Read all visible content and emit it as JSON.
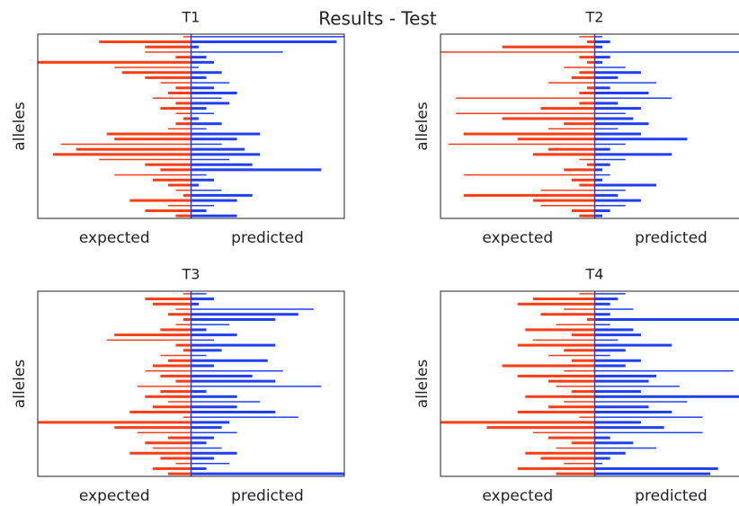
{
  "title": "Results - Test",
  "chart_data": [
    {
      "type": "butterfly",
      "title": "T1",
      "ylabel": "alleles",
      "xlim": [
        -1,
        1
      ],
      "series": [
        {
          "name": "expected",
          "color": "#ff3c14",
          "values": [
            -0.05,
            -0.6,
            -0.3,
            -0.3,
            -0.1,
            -1.0,
            -0.5,
            -0.45,
            -0.3,
            -0.2,
            -0.1,
            -0.15,
            -0.25,
            -0.1,
            -0.2,
            -0.1,
            -0.05,
            -0.1,
            -0.15,
            -0.55,
            -0.5,
            -0.85,
            -0.75,
            -0.9,
            -0.6,
            -0.3,
            -0.2,
            -0.5,
            -0.25,
            -0.15,
            -0.1,
            -0.05,
            -0.4,
            -0.15,
            -0.3,
            -0.1
          ]
        },
        {
          "name": "predicted",
          "color": "#1f3ff0",
          "values": [
            1.0,
            0.95,
            0.05,
            0.6,
            0.1,
            0.15,
            0.05,
            0.2,
            0.1,
            0.25,
            0.15,
            0.3,
            0.2,
            0.25,
            0.1,
            0.15,
            0.05,
            0.2,
            0.1,
            0.45,
            0.3,
            0.2,
            0.35,
            0.45,
            0.25,
            0.4,
            0.85,
            0.1,
            0.15,
            0.05,
            0.2,
            0.4,
            0.3,
            0.15,
            0.1,
            0.3
          ]
        }
      ]
    },
    {
      "type": "butterfly",
      "title": "T2",
      "ylabel": "alleles",
      "xlim": [
        -1,
        1
      ],
      "series": [
        {
          "name": "expected",
          "color": "#ff3c14",
          "values": [
            -0.1,
            -0.05,
            -0.6,
            -1.0,
            -0.1,
            -0.05,
            -0.2,
            -0.1,
            -0.15,
            -0.3,
            -0.05,
            -0.1,
            -0.9,
            -0.1,
            -0.35,
            -0.9,
            -0.6,
            -0.2,
            -0.3,
            -0.85,
            -0.5,
            -0.95,
            -0.3,
            -0.4,
            -0.1,
            -0.05,
            -0.2,
            -0.85,
            -0.15,
            -0.1,
            -0.35,
            -0.85,
            -0.4,
            -0.35,
            -0.15,
            -0.1
          ]
        },
        {
          "name": "predicted",
          "color": "#1f3ff0",
          "values": [
            0.05,
            0.1,
            0.05,
            1.0,
            0.1,
            0.05,
            0.2,
            0.3,
            0.15,
            0.4,
            0.1,
            0.35,
            0.5,
            0.15,
            0.3,
            0.2,
            0.25,
            0.35,
            0.15,
            0.3,
            0.6,
            0.2,
            0.1,
            0.5,
            0.2,
            0.1,
            0.05,
            0.1,
            0.05,
            0.4,
            0.2,
            0.15,
            0.3,
            0.2,
            0.1,
            0.05
          ]
        }
      ]
    },
    {
      "type": "butterfly",
      "title": "T3",
      "ylabel": "alleles",
      "xlim": [
        -1,
        1
      ],
      "series": [
        {
          "name": "expected",
          "color": "#ff3c14",
          "values": [
            -0.05,
            -0.3,
            -0.25,
            -0.1,
            -0.15,
            -0.05,
            -0.1,
            -0.2,
            -0.5,
            -0.55,
            -0.1,
            -0.05,
            -0.2,
            -0.15,
            -0.25,
            -0.3,
            -0.2,
            -0.1,
            -0.35,
            -0.2,
            -0.3,
            -0.15,
            -0.25,
            -0.4,
            -0.05,
            -1.0,
            -0.5,
            -0.35,
            -0.15,
            -0.3,
            -0.25,
            -0.4,
            -0.2,
            -0.1,
            -0.25,
            -0.15
          ]
        },
        {
          "name": "predicted",
          "color": "#1f3ff0",
          "values": [
            0.1,
            0.15,
            0.05,
            0.8,
            0.7,
            0.55,
            0.25,
            0.1,
            0.3,
            0.15,
            0.55,
            0.2,
            0.1,
            0.5,
            0.15,
            0.6,
            0.4,
            0.55,
            0.85,
            0.1,
            0.3,
            0.45,
            0.3,
            0.55,
            0.7,
            0.25,
            0.2,
            0.3,
            0.15,
            0.1,
            0.2,
            0.3,
            0.15,
            0.25,
            0.1,
            1.0
          ]
        }
      ]
    },
    {
      "type": "butterfly",
      "title": "T4",
      "ylabel": "alleles",
      "xlim": [
        -1,
        1
      ],
      "series": [
        {
          "name": "expected",
          "color": "#ff3c14",
          "values": [
            -0.1,
            -0.4,
            -0.5,
            -0.2,
            -0.35,
            -0.05,
            -0.25,
            -0.45,
            -0.15,
            -0.4,
            -0.5,
            -0.2,
            -0.3,
            -0.15,
            -0.6,
            -0.2,
            -0.5,
            -0.3,
            -0.25,
            -0.15,
            -0.45,
            -0.2,
            -0.3,
            -0.5,
            -0.1,
            -1.0,
            -0.7,
            -0.4,
            -0.3,
            -0.15,
            -0.25,
            -0.45,
            -0.35,
            -0.2,
            -0.5,
            -0.25
          ]
        },
        {
          "name": "predicted",
          "color": "#1f3ff0",
          "values": [
            0.2,
            0.15,
            0.1,
            0.25,
            0.1,
            1.0,
            0.1,
            0.25,
            0.3,
            0.15,
            0.5,
            0.2,
            0.1,
            0.3,
            0.2,
            0.9,
            0.4,
            0.35,
            0.55,
            0.3,
            1.0,
            0.6,
            0.35,
            0.5,
            0.7,
            0.3,
            0.45,
            0.7,
            0.1,
            0.25,
            0.4,
            0.2,
            0.1,
            0.05,
            0.8,
            0.75
          ]
        }
      ]
    }
  ]
}
